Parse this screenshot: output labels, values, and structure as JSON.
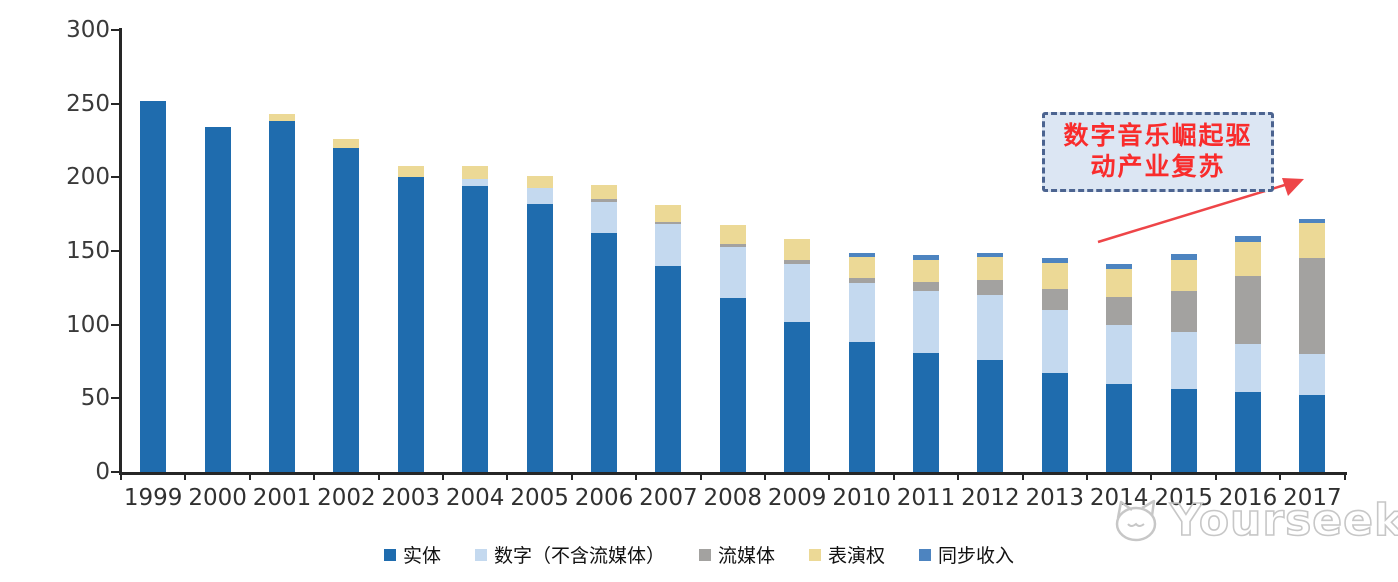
{
  "chart_data": {
    "type": "bar",
    "stacked": true,
    "categories": [
      "1999",
      "2000",
      "2001",
      "2002",
      "2003",
      "2004",
      "2005",
      "2006",
      "2007",
      "2008",
      "2009",
      "2010",
      "2011",
      "2012",
      "2013",
      "2014",
      "2015",
      "2016",
      "2017"
    ],
    "series": [
      {
        "key": "physical",
        "name": "实体",
        "color": "#1f6cae",
        "values": [
          252,
          234,
          238,
          220,
          200,
          194,
          182,
          162,
          140,
          118,
          102,
          88,
          81,
          76,
          67,
          60,
          56,
          54,
          52
        ]
      },
      {
        "key": "digital-excl-streaming",
        "name": "数字（不含流媒体）",
        "color": "#c4d9ef",
        "values": [
          0,
          0,
          0,
          0,
          0,
          5,
          11,
          21,
          28,
          35,
          39,
          40,
          42,
          44,
          43,
          40,
          39,
          33,
          28
        ]
      },
      {
        "key": "streaming",
        "name": "流媒体",
        "color": "#a3a2a0",
        "values": [
          0,
          0,
          0,
          0,
          0,
          0,
          0,
          2,
          2,
          2,
          3,
          4,
          6,
          10,
          14,
          19,
          28,
          46,
          65
        ]
      },
      {
        "key": "performance-rights",
        "name": "表演权",
        "color": "#ecd996",
        "values": [
          0,
          0,
          5,
          6,
          8,
          9,
          8,
          10,
          11,
          13,
          14,
          14,
          15,
          16,
          18,
          19,
          21,
          23,
          24
        ]
      },
      {
        "key": "sync",
        "name": "同步收入",
        "color": "#4d84c0",
        "values": [
          0,
          0,
          0,
          0,
          0,
          0,
          0,
          0,
          0,
          0,
          0,
          3,
          3,
          3,
          3,
          3,
          4,
          4,
          3
        ]
      }
    ],
    "ylim": [
      0,
      300
    ],
    "yticks": [
      0,
      50,
      100,
      150,
      200,
      250,
      300
    ],
    "grid": false,
    "legend_position": "bottom",
    "title": "",
    "xlabel": "",
    "ylabel": ""
  },
  "annotation": {
    "line1": "数字音乐崛起驱",
    "line2": "动产业复苏",
    "text_color": "#f92c2c",
    "box_fill": "#dce6f3",
    "box_border_color": "#4c6490",
    "arrow_color": "#ee4548"
  },
  "watermark": {
    "text": "Yourseeker"
  }
}
